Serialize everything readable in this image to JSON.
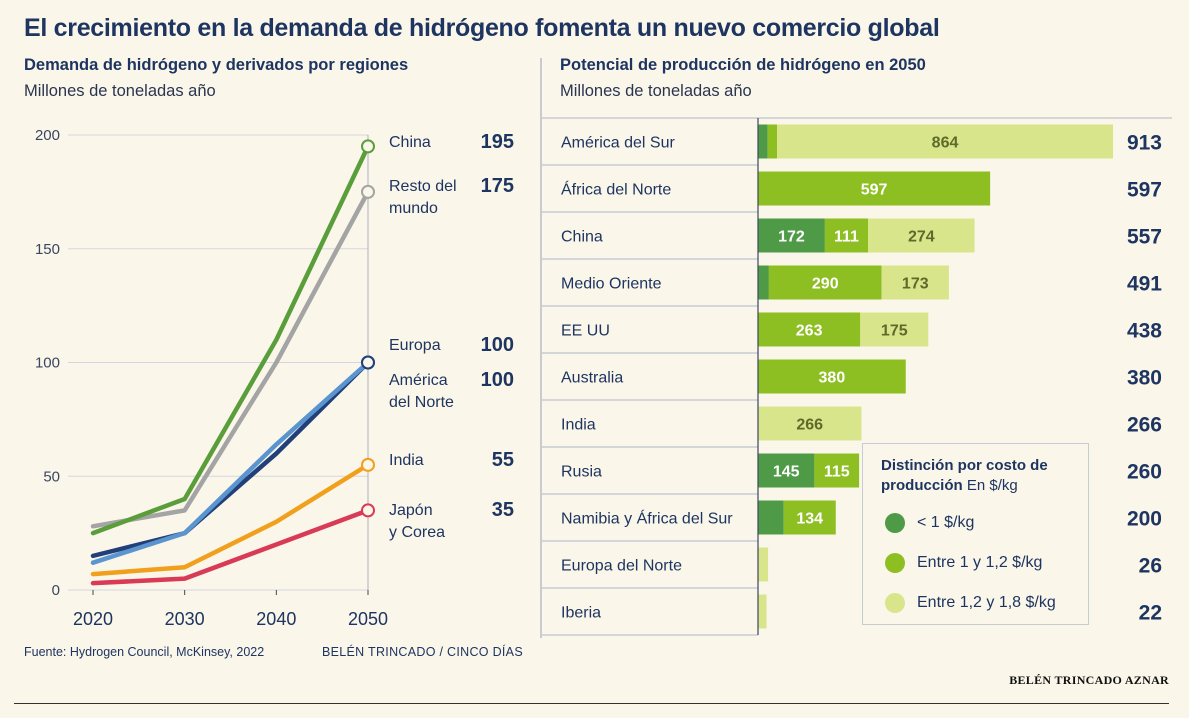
{
  "title": "El crecimiento en la demanda de hidrógeno fomenta un nuevo comercio global",
  "left_panel": {
    "subtitle": "Demanda de hidrógeno y derivados por regiones",
    "units": "Millones de toneladas año"
  },
  "right_panel": {
    "subtitle": "Potencial de producción de hidrógeno en 2050",
    "units": "Millones de toneladas año"
  },
  "footer": {
    "source": "Fuente: Hydrogen Council, McKinsey, 2022",
    "credit": "BELÉN TRINCADO / CINCO DÍAS"
  },
  "byline": "BELÉN TRINCADO AZNAR",
  "legend": {
    "title_bold": "Distinción por costo de producción",
    "title_rest": "En $/kg",
    "items": [
      {
        "label": "< 1 $/kg",
        "color": "#4e9a47"
      },
      {
        "label": "Entre 1 y 1,2 $/kg",
        "color": "#8ebf22"
      },
      {
        "label": "Entre 1,2 y 1,8 $/kg",
        "color": "#d9e58b"
      }
    ]
  },
  "chart_data": [
    {
      "type": "line",
      "title": "Demanda de hidrógeno y derivados por regiones",
      "ylabel": "Millones de toneladas año",
      "x": [
        2020,
        2030,
        2040,
        2050
      ],
      "ylim": [
        0,
        200
      ],
      "yticks": [
        0,
        50,
        100,
        150,
        200
      ],
      "series": [
        {
          "name": "China",
          "label_lines": [
            "China"
          ],
          "end_label": "195",
          "color": "#5a9e3c",
          "values": [
            25,
            40,
            110,
            195
          ]
        },
        {
          "name": "Resto del mundo",
          "label_lines": [
            "Resto del",
            "mundo"
          ],
          "end_label": "175",
          "color": "#a4a4a4",
          "values": [
            28,
            35,
            100,
            175
          ]
        },
        {
          "name": "Europa",
          "label_lines": [
            "Europa"
          ],
          "end_label": "100",
          "color": "#5b95cf",
          "values": [
            12,
            25,
            64,
            100
          ]
        },
        {
          "name": "América del Norte",
          "label_lines": [
            "América",
            "del Norte"
          ],
          "end_label": "100",
          "color": "#213f78",
          "values": [
            15,
            25,
            60,
            100
          ]
        },
        {
          "name": "India",
          "label_lines": [
            "India"
          ],
          "end_label": "55",
          "color": "#f0a01d",
          "values": [
            7,
            10,
            30,
            55
          ]
        },
        {
          "name": "Japón y Corea",
          "label_lines": [
            "Japón",
            "y Corea"
          ],
          "end_label": "35",
          "color": "#d93a55",
          "values": [
            3,
            5,
            20,
            35
          ]
        }
      ]
    },
    {
      "type": "bar",
      "orientation": "horizontal",
      "stacked": true,
      "title": "Potencial de producción de hidrógeno en 2050",
      "ylabel": "Millones de toneladas año",
      "categories": [
        "América del Sur",
        "África del Norte",
        "China",
        "Medio Oriente",
        "EE UU",
        "Australia",
        "India",
        "Rusia",
        "Namibia y África del Sur",
        "Europa del Norte",
        "Iberia"
      ],
      "totals": [
        913,
        597,
        557,
        491,
        438,
        380,
        266,
        260,
        200,
        26,
        22
      ],
      "series": [
        {
          "name": "< 1 $/kg",
          "color": "#4e9a47",
          "values": [
            25,
            0,
            172,
            28,
            0,
            0,
            0,
            145,
            66,
            0,
            0
          ],
          "labels": [
            "",
            "",
            "172",
            "",
            "",
            "",
            "",
            "145",
            "",
            "",
            ""
          ]
        },
        {
          "name": "Entre 1 y 1,2 $/kg",
          "color": "#8ebf22",
          "values": [
            24,
            597,
            111,
            290,
            263,
            380,
            0,
            115,
            134,
            0,
            0
          ],
          "labels": [
            "",
            "597",
            "111",
            "290",
            "263",
            "380",
            "",
            "115",
            "134",
            "",
            ""
          ]
        },
        {
          "name": "Entre 1,2 y 1,8 $/kg",
          "color": "#d9e58b",
          "values": [
            864,
            0,
            274,
            173,
            175,
            0,
            266,
            0,
            0,
            26,
            22
          ],
          "labels": [
            "864",
            "",
            "274",
            "173",
            "175",
            "",
            "266",
            "",
            "",
            "",
            ""
          ]
        }
      ]
    }
  ]
}
